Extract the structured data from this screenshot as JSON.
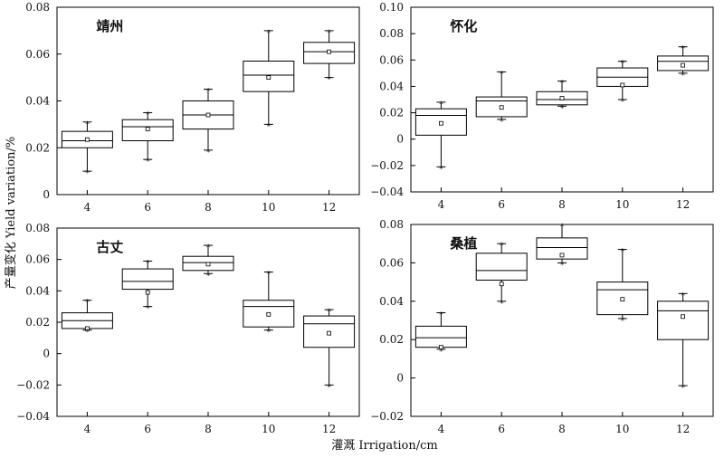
{
  "figure": {
    "xlabel": "灌溉 Irrigation/cm",
    "ylabel": "产量变化 Yield variation/%"
  },
  "chart_data": [
    {
      "type": "box",
      "title": "靖州",
      "categories": [
        "4",
        "6",
        "8",
        "10",
        "12"
      ],
      "ylim": [
        0,
        0.08
      ],
      "yticks": [
        "0",
        "0.02",
        "0.04",
        "0.06",
        "0.08"
      ],
      "boxes": [
        {
          "x": "4",
          "whisker_low": 0.01,
          "q1": 0.02,
          "median": 0.023,
          "q3": 0.027,
          "whisker_high": 0.031,
          "mean": 0.0235
        },
        {
          "x": "6",
          "whisker_low": 0.015,
          "q1": 0.023,
          "median": 0.029,
          "q3": 0.032,
          "whisker_high": 0.035,
          "mean": 0.028
        },
        {
          "x": "8",
          "whisker_low": 0.019,
          "q1": 0.028,
          "median": 0.034,
          "q3": 0.04,
          "whisker_high": 0.045,
          "mean": 0.034
        },
        {
          "x": "10",
          "whisker_low": 0.03,
          "q1": 0.044,
          "median": 0.051,
          "q3": 0.057,
          "whisker_high": 0.07,
          "mean": 0.05
        },
        {
          "x": "12",
          "whisker_low": 0.05,
          "q1": 0.056,
          "median": 0.061,
          "q3": 0.065,
          "whisker_high": 0.07,
          "mean": 0.061
        }
      ]
    },
    {
      "type": "box",
      "title": "怀化",
      "categories": [
        "4",
        "6",
        "8",
        "10",
        "12"
      ],
      "ylim": [
        -0.04,
        0.1
      ],
      "yticks": [
        "−0.04",
        "−0.02",
        "0",
        "0.02",
        "0.04",
        "0.06",
        "0.08",
        "0.10"
      ],
      "boxes": [
        {
          "x": "4",
          "whisker_low": -0.021,
          "q1": 0.003,
          "median": 0.018,
          "q3": 0.023,
          "whisker_high": 0.028,
          "mean": 0.012
        },
        {
          "x": "6",
          "whisker_low": 0.015,
          "q1": 0.017,
          "median": 0.029,
          "q3": 0.032,
          "whisker_high": 0.051,
          "mean": 0.024
        },
        {
          "x": "8",
          "whisker_low": 0.025,
          "q1": 0.026,
          "median": 0.03,
          "q3": 0.036,
          "whisker_high": 0.044,
          "mean": 0.031
        },
        {
          "x": "10",
          "whisker_low": 0.03,
          "q1": 0.04,
          "median": 0.047,
          "q3": 0.054,
          "whisker_high": 0.059,
          "mean": 0.041
        },
        {
          "x": "12",
          "whisker_low": 0.05,
          "q1": 0.052,
          "median": 0.059,
          "q3": 0.063,
          "whisker_high": 0.07,
          "mean": 0.056
        }
      ]
    },
    {
      "type": "box",
      "title": "古丈",
      "categories": [
        "4",
        "6",
        "8",
        "10",
        "12"
      ],
      "ylim": [
        -0.04,
        0.08
      ],
      "yticks": [
        "−0.04",
        "−0.02",
        "0",
        "0.02",
        "0.04",
        "0.06",
        "0.08"
      ],
      "boxes": [
        {
          "x": "4",
          "whisker_low": 0.015,
          "q1": 0.016,
          "median": 0.021,
          "q3": 0.026,
          "whisker_high": 0.034,
          "mean": 0.016
        },
        {
          "x": "6",
          "whisker_low": 0.03,
          "q1": 0.041,
          "median": 0.046,
          "q3": 0.054,
          "whisker_high": 0.059,
          "mean": 0.039
        },
        {
          "x": "8",
          "whisker_low": 0.051,
          "q1": 0.053,
          "median": 0.058,
          "q3": 0.062,
          "whisker_high": 0.069,
          "mean": 0.057
        },
        {
          "x": "10",
          "whisker_low": 0.015,
          "q1": 0.017,
          "median": 0.03,
          "q3": 0.034,
          "whisker_high": 0.052,
          "mean": 0.025
        },
        {
          "x": "12",
          "whisker_low": -0.02,
          "q1": 0.004,
          "median": 0.019,
          "q3": 0.024,
          "whisker_high": 0.028,
          "mean": 0.013
        }
      ]
    },
    {
      "type": "box",
      "title": "桑植",
      "categories": [
        "4",
        "6",
        "8",
        "10",
        "12"
      ],
      "ylim": [
        -0.02,
        0.08
      ],
      "yticks": [
        "−0.02",
        "0",
        "0.02",
        "0.04",
        "0.06",
        "0.08"
      ],
      "boxes": [
        {
          "x": "4",
          "whisker_low": 0.015,
          "q1": 0.016,
          "median": 0.021,
          "q3": 0.027,
          "whisker_high": 0.034,
          "mean": 0.016
        },
        {
          "x": "6",
          "whisker_low": 0.04,
          "q1": 0.051,
          "median": 0.056,
          "q3": 0.065,
          "whisker_high": 0.07,
          "mean": 0.049
        },
        {
          "x": "8",
          "whisker_low": 0.06,
          "q1": 0.062,
          "median": 0.068,
          "q3": 0.073,
          "whisker_high": 0.08,
          "mean": 0.064
        },
        {
          "x": "10",
          "whisker_low": 0.031,
          "q1": 0.033,
          "median": 0.046,
          "q3": 0.05,
          "whisker_high": 0.067,
          "mean": 0.041
        },
        {
          "x": "12",
          "whisker_low": -0.004,
          "q1": 0.02,
          "median": 0.035,
          "q3": 0.04,
          "whisker_high": 0.044,
          "mean": 0.032
        }
      ]
    }
  ]
}
